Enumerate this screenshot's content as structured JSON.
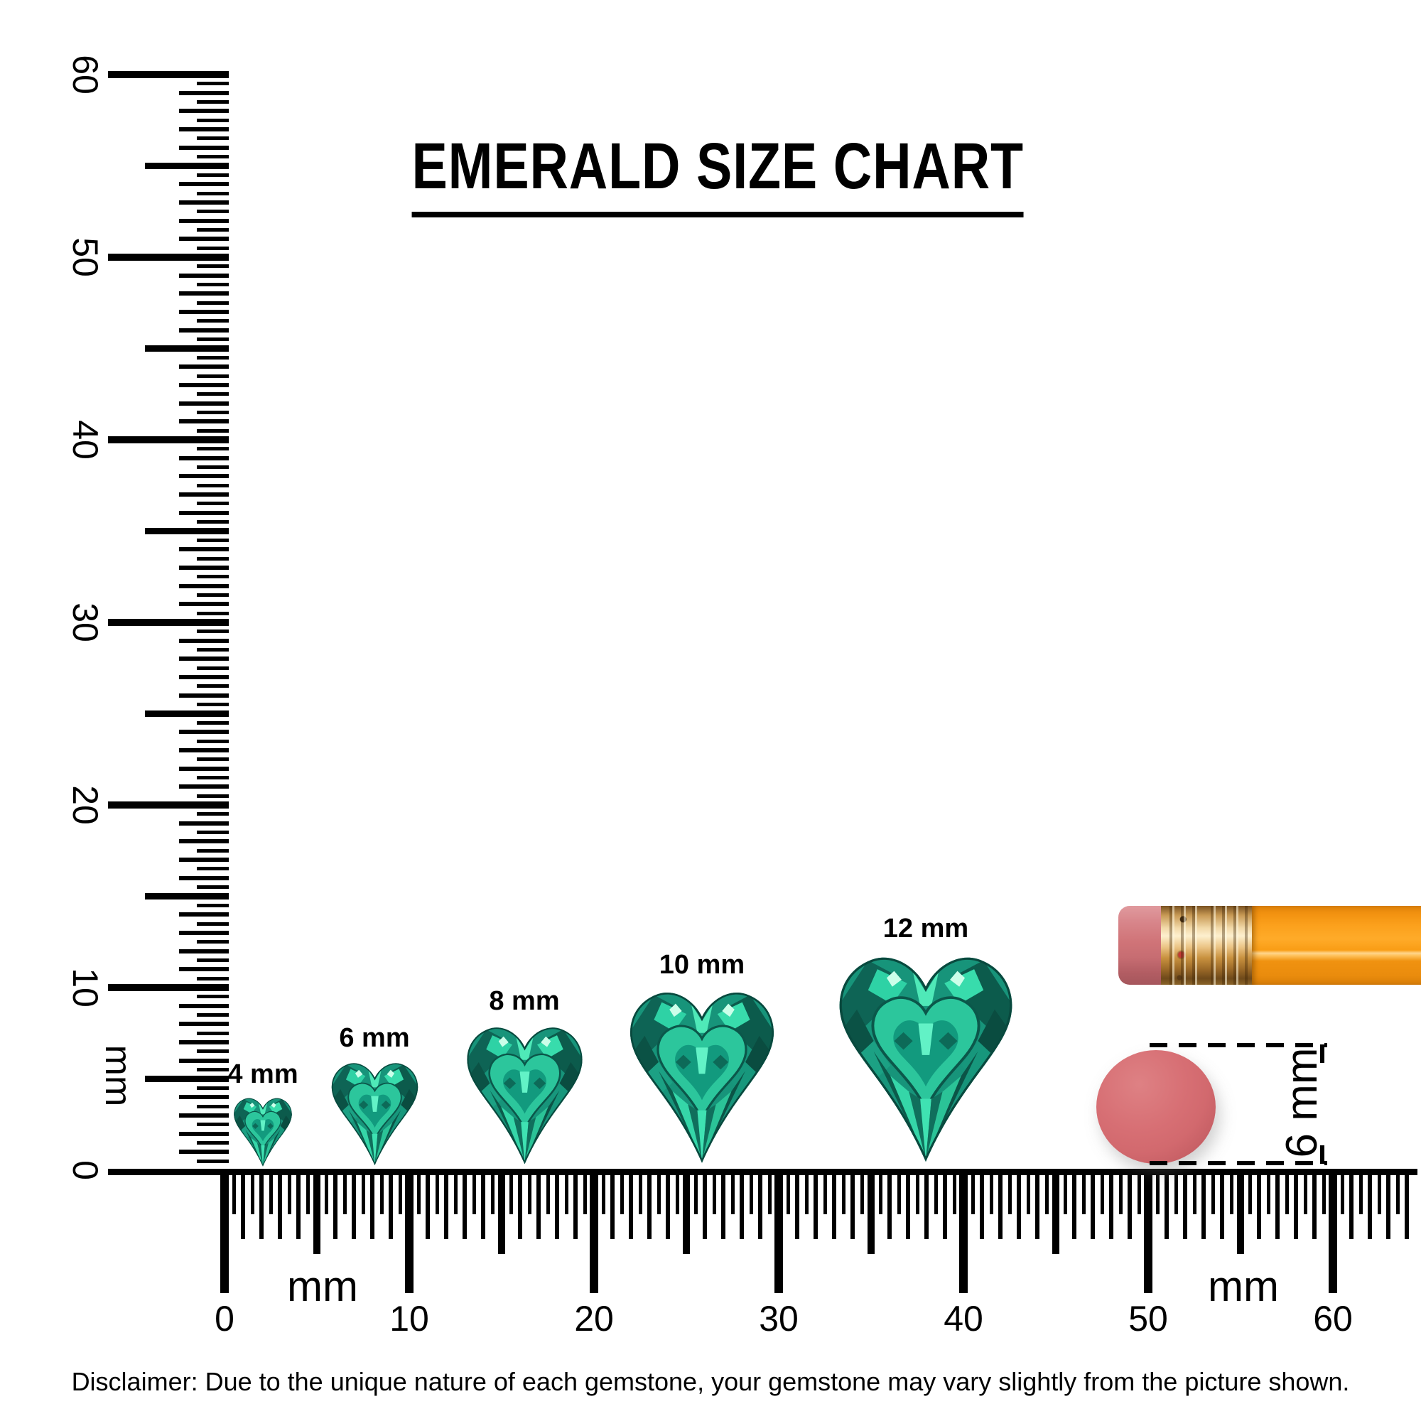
{
  "title": "EMERALD SIZE CHART",
  "vertical_ruler": {
    "unit": "mm",
    "labels": [
      "0",
      "10",
      "20",
      "30",
      "40",
      "50",
      "60"
    ]
  },
  "horizontal_ruler": {
    "unit_left": "mm",
    "unit_right": "mm",
    "labels": [
      "0",
      "10",
      "20",
      "30",
      "40",
      "50",
      "60"
    ]
  },
  "gems": [
    {
      "label": "4 mm",
      "size_mm": 4
    },
    {
      "label": "6 mm",
      "size_mm": 6
    },
    {
      "label": "8 mm",
      "size_mm": 8
    },
    {
      "label": "10 mm",
      "size_mm": 10
    },
    {
      "label": "12 mm",
      "size_mm": 12
    }
  ],
  "measurement": {
    "label": "6 mm"
  },
  "disclaimer": "Disclaimer: Due to the unique nature of each gemstone, your gemstone may vary slightly from the picture shown.",
  "colors": {
    "ink": "#000000",
    "emerald_bright": "#3fe2b2",
    "emerald_mid": "#17947a",
    "emerald_dark": "#0c5b4c",
    "pencil_body_orange": "#f99d15",
    "ferrule_gold": "#e2b877",
    "eraser_pink": "#d07478",
    "round_eraser_coral": "#d2696e"
  }
}
